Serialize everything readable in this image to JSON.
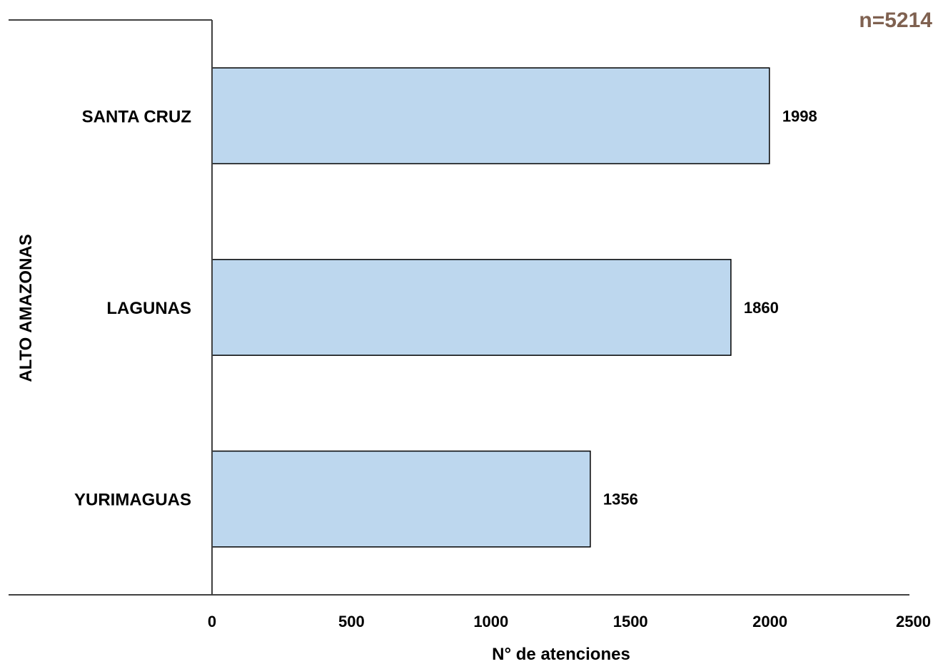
{
  "chart_data": {
    "type": "bar",
    "orientation": "horizontal",
    "group_label": "ALTO AMAZONAS",
    "categories": [
      "SANTA CRUZ",
      "LAGUNAS",
      "YURIMAGUAS"
    ],
    "values": [
      1998,
      1860,
      1356
    ],
    "value_labels": [
      "1998",
      "1860",
      "1356"
    ],
    "xlabel": "N° de atenciones",
    "ylabel": "",
    "xlim": [
      0,
      2500
    ],
    "ticks": [
      "0",
      "500",
      "1000",
      "1500",
      "2000",
      "2500"
    ],
    "tick_values": [
      0,
      500,
      1000,
      1500,
      2000,
      2500
    ],
    "annotation": "n=5214",
    "grid": false,
    "legend": "none",
    "colors": {
      "bar_fill": "#bdd7ee",
      "bar_stroke": "#000000",
      "axis": "#404040",
      "annotation": "#7f6150"
    }
  }
}
